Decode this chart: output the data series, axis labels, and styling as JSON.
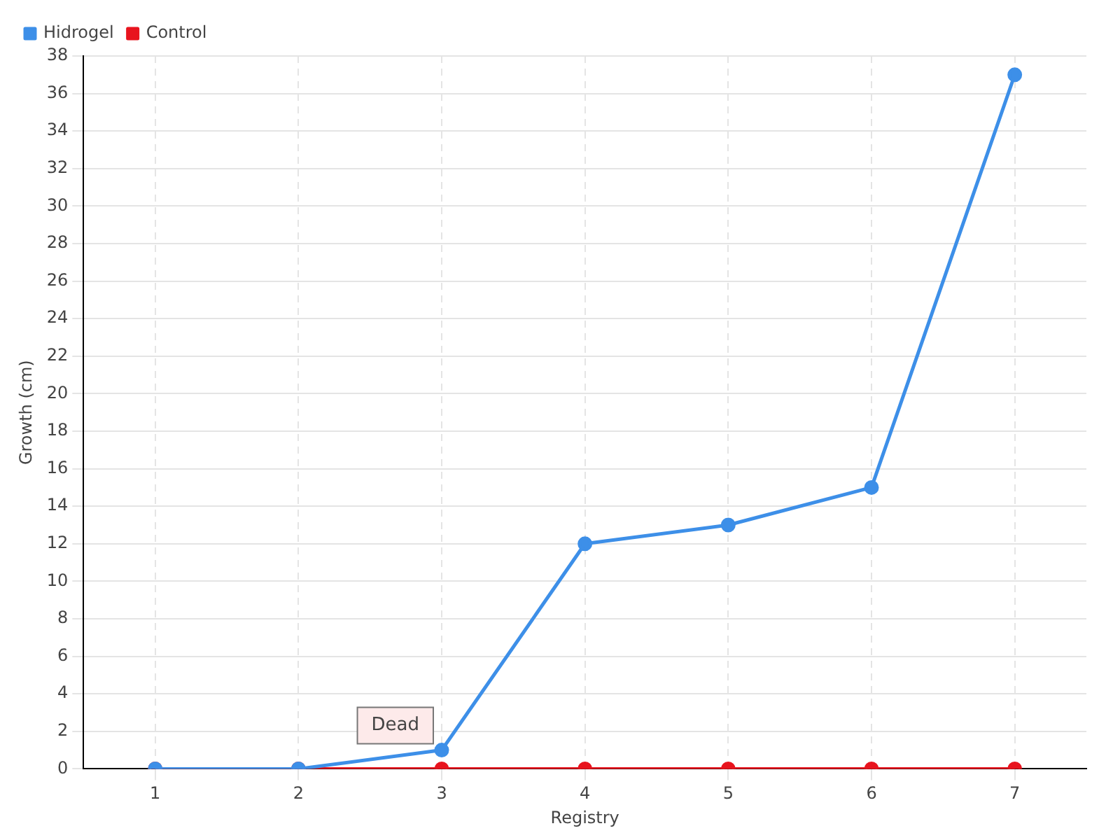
{
  "chart_data": {
    "type": "line",
    "xlabel": "Registry",
    "ylabel": "Growth (cm)",
    "categories": [
      "1",
      "2",
      "3",
      "4",
      "5",
      "6",
      "7"
    ],
    "series": [
      {
        "name": "Hidrogel",
        "color": "#3d8fe8",
        "values": [
          0,
          0,
          1,
          12,
          13,
          15,
          37
        ]
      },
      {
        "name": "Control",
        "color": "#e8141e",
        "values": [
          0,
          0,
          0,
          0,
          0,
          0,
          0
        ]
      }
    ],
    "ylim": [
      0,
      38
    ],
    "yticks": [
      0,
      2,
      4,
      6,
      8,
      10,
      12,
      14,
      16,
      18,
      20,
      22,
      24,
      26,
      28,
      30,
      32,
      34,
      36,
      38
    ],
    "grid": true,
    "legend": "top left",
    "marker": "circle",
    "line_style": "solid",
    "annotations": [
      {
        "text": "Dead",
        "x": "3",
        "y": 0
      }
    ]
  }
}
